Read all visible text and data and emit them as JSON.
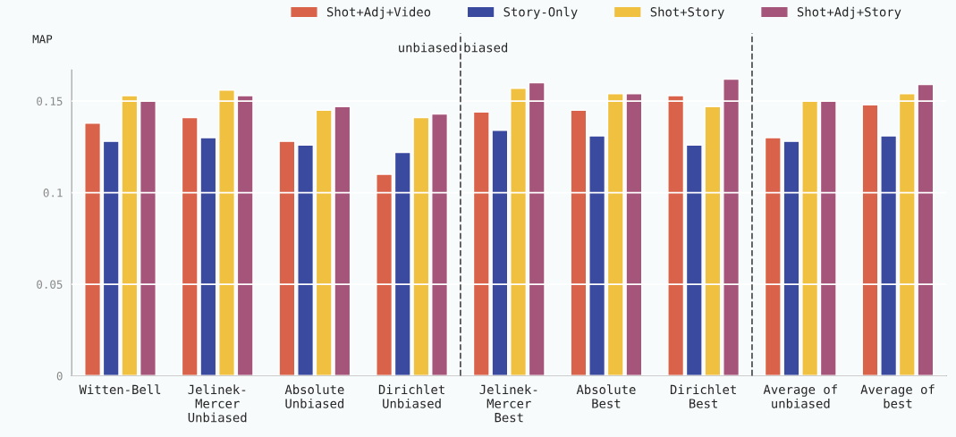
{
  "chart_data": {
    "type": "bar",
    "ylabel": "MAP",
    "categories": [
      "Witten-Bell",
      "Jelinek-\nMercer\nUnbiased",
      "Absolute\nUnbiased",
      "Dirichlet\nUnbiased",
      "Jelinek-\nMercer\nBest",
      "Absolute\nBest",
      "Dirichlet\nBest",
      "Average of\nunbiased",
      "Average of\nbest"
    ],
    "series": [
      {
        "name": "Shot+Adj+Video",
        "color": "#d9634a",
        "values": [
          0.138,
          0.141,
          0.128,
          0.11,
          0.144,
          0.145,
          0.153,
          0.13,
          0.148
        ]
      },
      {
        "name": "Story-Only",
        "color": "#3a4a9e",
        "values": [
          0.128,
          0.13,
          0.126,
          0.122,
          0.134,
          0.131,
          0.126,
          0.128,
          0.131
        ]
      },
      {
        "name": "Shot+Story",
        "color": "#f0c040",
        "values": [
          0.153,
          0.156,
          0.145,
          0.141,
          0.157,
          0.154,
          0.147,
          0.15,
          0.154
        ]
      },
      {
        "name": "Shot+Adj+Story",
        "color": "#a5557a",
        "values": [
          0.15,
          0.153,
          0.147,
          0.143,
          0.16,
          0.154,
          0.162,
          0.15,
          0.159
        ]
      }
    ],
    "ylim": [
      0,
      0.167
    ],
    "yticks": [
      0,
      0.05,
      0.1,
      0.15
    ],
    "grid": "y",
    "legend": "top",
    "annotations": [
      "unbiased",
      "biased"
    ]
  }
}
